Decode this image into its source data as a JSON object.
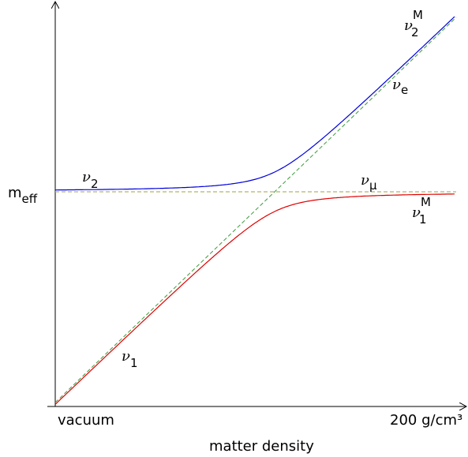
{
  "axes": {
    "y_label": {
      "main": "m",
      "sub": "eff"
    },
    "x_start": "vacuum",
    "x_end": "200 g/cm³",
    "x_label": "matter density"
  },
  "labels": {
    "nu2M": {
      "symbol": "ν",
      "sub": "2",
      "sup": "M"
    },
    "nue": {
      "symbol": "ν",
      "sub": "e"
    },
    "numu": {
      "symbol": "ν",
      "sub": "μ"
    },
    "nu1M": {
      "symbol": "ν",
      "sub": "1",
      "sup": "M"
    },
    "nu2": {
      "symbol": "ν",
      "sub": "2"
    },
    "nu1": {
      "symbol": "ν",
      "sub": "1"
    }
  }
}
